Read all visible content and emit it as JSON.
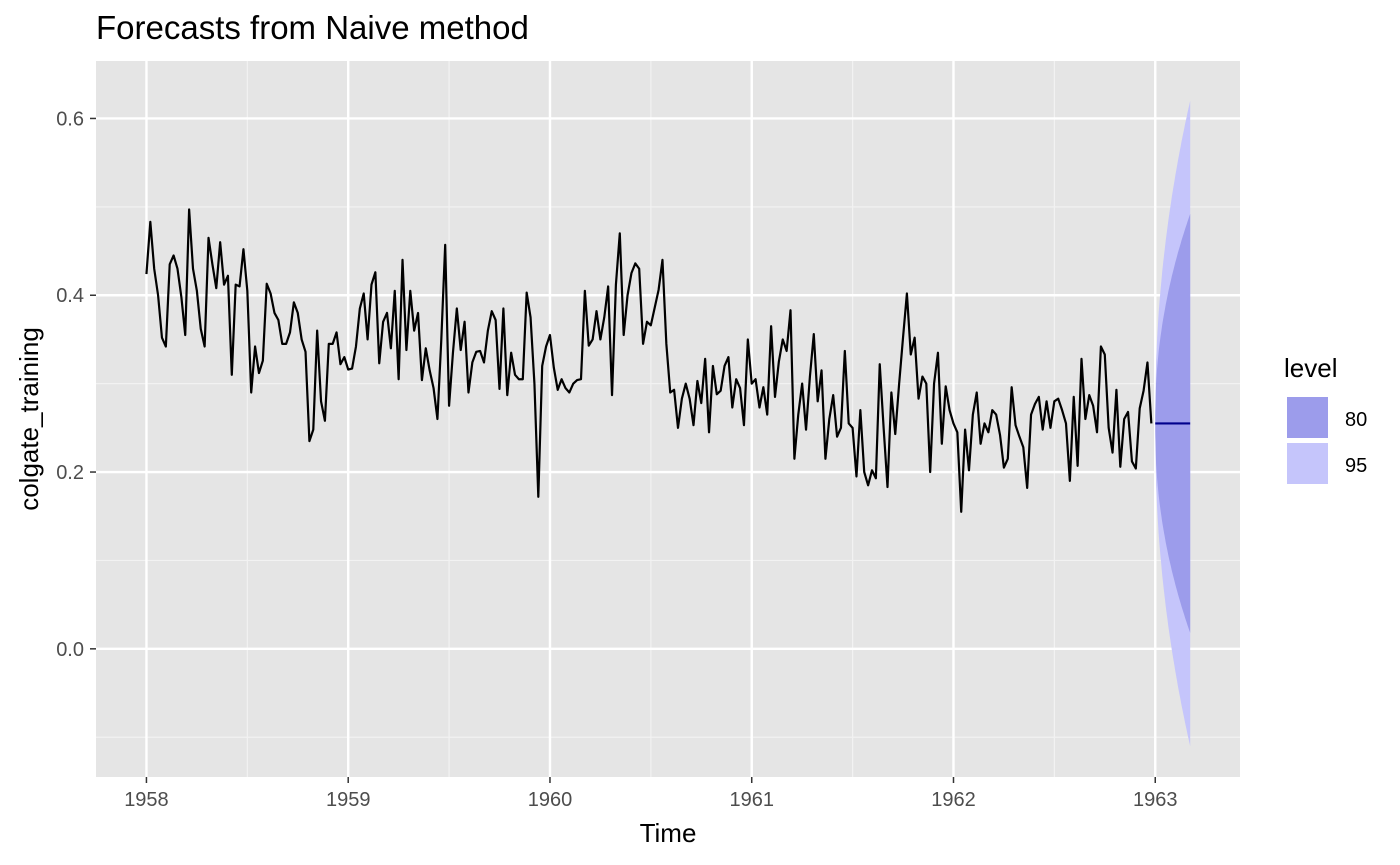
{
  "chart_data": {
    "type": "line",
    "title": "Forecasts from Naive method",
    "xlabel": "Time",
    "ylabel": "colgate_training",
    "xlim": [
      1957.75,
      1963.42
    ],
    "ylim": [
      -0.145,
      0.665
    ],
    "x_ticks": [
      1958,
      1959,
      1960,
      1961,
      1962,
      1963
    ],
    "x_tick_labels": [
      "1958",
      "1959",
      "1960",
      "1961",
      "1962",
      "1963"
    ],
    "y_ticks": [
      0.0,
      0.2,
      0.4,
      0.6
    ],
    "y_tick_labels": [
      "0.0",
      "0.2",
      "0.4",
      "0.6"
    ],
    "grid": true,
    "panel_background": "#e5e5e5",
    "series": [
      {
        "color": "#000000",
        "x_start": 1958.0,
        "step": 0.01923,
        "values": [
          0.424,
          0.483,
          0.43,
          0.4,
          0.352,
          0.342,
          0.435,
          0.445,
          0.43,
          0.398,
          0.355,
          0.497,
          0.43,
          0.405,
          0.362,
          0.342,
          0.465,
          0.435,
          0.408,
          0.46,
          0.412,
          0.422,
          0.31,
          0.412,
          0.41,
          0.452,
          0.405,
          0.29,
          0.342,
          0.312,
          0.326,
          0.413,
          0.402,
          0.38,
          0.372,
          0.345,
          0.345,
          0.358,
          0.392,
          0.38,
          0.35,
          0.336,
          0.235,
          0.248,
          0.36,
          0.28,
          0.258,
          0.345,
          0.345,
          0.358,
          0.322,
          0.33,
          0.316,
          0.317,
          0.342,
          0.385,
          0.402,
          0.35,
          0.412,
          0.426,
          0.323,
          0.37,
          0.38,
          0.34,
          0.405,
          0.305,
          0.44,
          0.338,
          0.405,
          0.36,
          0.38,
          0.304,
          0.34,
          0.315,
          0.295,
          0.26,
          0.35,
          0.457,
          0.275,
          0.335,
          0.385,
          0.338,
          0.37,
          0.29,
          0.324,
          0.336,
          0.337,
          0.324,
          0.36,
          0.382,
          0.372,
          0.294,
          0.385,
          0.287,
          0.335,
          0.31,
          0.305,
          0.305,
          0.403,
          0.375,
          0.3,
          0.172,
          0.32,
          0.342,
          0.355,
          0.318,
          0.293,
          0.305,
          0.295,
          0.29,
          0.3,
          0.304,
          0.305,
          0.405,
          0.343,
          0.35,
          0.382,
          0.35,
          0.375,
          0.41,
          0.287,
          0.412,
          0.47,
          0.355,
          0.4,
          0.425,
          0.436,
          0.43,
          0.345,
          0.37,
          0.366,
          0.386,
          0.406,
          0.44,
          0.345,
          0.29,
          0.293,
          0.25,
          0.283,
          0.3,
          0.283,
          0.253,
          0.303,
          0.278,
          0.328,
          0.245,
          0.32,
          0.288,
          0.292,
          0.32,
          0.33,
          0.273,
          0.305,
          0.295,
          0.253,
          0.35,
          0.3,
          0.305,
          0.273,
          0.296,
          0.265,
          0.365,
          0.285,
          0.325,
          0.35,
          0.337,
          0.383,
          0.215,
          0.265,
          0.3,
          0.248,
          0.308,
          0.356,
          0.28,
          0.315,
          0.215,
          0.26,
          0.287,
          0.24,
          0.25,
          0.337,
          0.255,
          0.25,
          0.195,
          0.27,
          0.2,
          0.185,
          0.202,
          0.193,
          0.322,
          0.25,
          0.183,
          0.29,
          0.243,
          0.3,
          0.352,
          0.402,
          0.333,
          0.352,
          0.283,
          0.308,
          0.3,
          0.2,
          0.3,
          0.335,
          0.232,
          0.297,
          0.27,
          0.255,
          0.245,
          0.155,
          0.248,
          0.202,
          0.265,
          0.29,
          0.232,
          0.255,
          0.245,
          0.27,
          0.265,
          0.242,
          0.205,
          0.215,
          0.296,
          0.253,
          0.24,
          0.228,
          0.182,
          0.265,
          0.277,
          0.285,
          0.248,
          0.28,
          0.25,
          0.28,
          0.283,
          0.27,
          0.255,
          0.19,
          0.285,
          0.207,
          0.328,
          0.26,
          0.287,
          0.275,
          0.245,
          0.342,
          0.333,
          0.25,
          0.222,
          0.293,
          0.206,
          0.26,
          0.268,
          0.212,
          0.204,
          0.272,
          0.292,
          0.324,
          0.255
        ]
      }
    ],
    "forecast": {
      "x_start": 1963.0,
      "x_end": 1963.173,
      "point": 0.255,
      "color": "#00008b",
      "intervals": [
        {
          "level": "95",
          "color": "#c5c5fb",
          "half_width_start": 0.015,
          "half_width_end": 0.365
        },
        {
          "level": "80",
          "color": "#9c9ceb",
          "half_width_start": 0.01,
          "half_width_end": 0.237
        }
      ]
    },
    "legend": {
      "title": "level",
      "position": "right",
      "items": [
        {
          "label": "80",
          "color": "#9c9ceb"
        },
        {
          "label": "95",
          "color": "#c5c5fb"
        }
      ]
    }
  }
}
